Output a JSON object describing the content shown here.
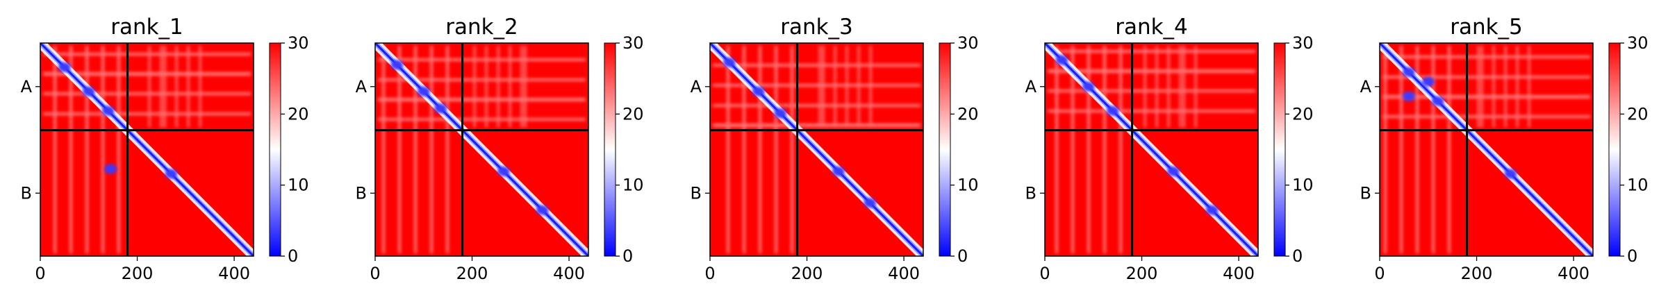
{
  "chart_data": {
    "type": "heatmap",
    "colormap": [
      "#0000ff",
      "#ffffff",
      "#ff0000"
    ],
    "vmin": 0,
    "vmax": 30,
    "colorbar_ticks": [
      "0",
      "10",
      "20",
      "30"
    ],
    "x_ticks": [
      {
        "value": 0,
        "label": "0"
      },
      {
        "value": 200,
        "label": "200"
      },
      {
        "value": 400,
        "label": "400"
      }
    ],
    "x_range": [
      0,
      440
    ],
    "chain_boundary": 180,
    "chains": [
      {
        "label": "A",
        "start": 0,
        "end": 180
      },
      {
        "label": "B",
        "start": 180,
        "end": 440
      }
    ],
    "panels": [
      {
        "title": "rank_1",
        "blobs": [
          [
            50,
            50
          ],
          [
            140,
            140
          ],
          [
            270,
            270
          ],
          [
            100,
            100
          ],
          [
            145,
            260
          ]
        ]
      },
      {
        "title": "rank_2",
        "blobs": [
          [
            45,
            45
          ],
          [
            135,
            135
          ],
          [
            265,
            265
          ],
          [
            345,
            345
          ],
          [
            100,
            100
          ]
        ]
      },
      {
        "title": "rank_3",
        "blobs": [
          [
            40,
            40
          ],
          [
            145,
            145
          ],
          [
            265,
            265
          ],
          [
            330,
            330
          ],
          [
            100,
            100
          ]
        ]
      },
      {
        "title": "rank_4",
        "blobs": [
          [
            35,
            35
          ],
          [
            140,
            140
          ],
          [
            265,
            265
          ],
          [
            345,
            345
          ],
          [
            90,
            90
          ]
        ]
      },
      {
        "title": "rank_5",
        "blobs": [
          [
            60,
            60
          ],
          [
            120,
            120
          ],
          [
            270,
            270
          ],
          [
            100,
            80
          ],
          [
            60,
            110
          ]
        ]
      }
    ]
  }
}
